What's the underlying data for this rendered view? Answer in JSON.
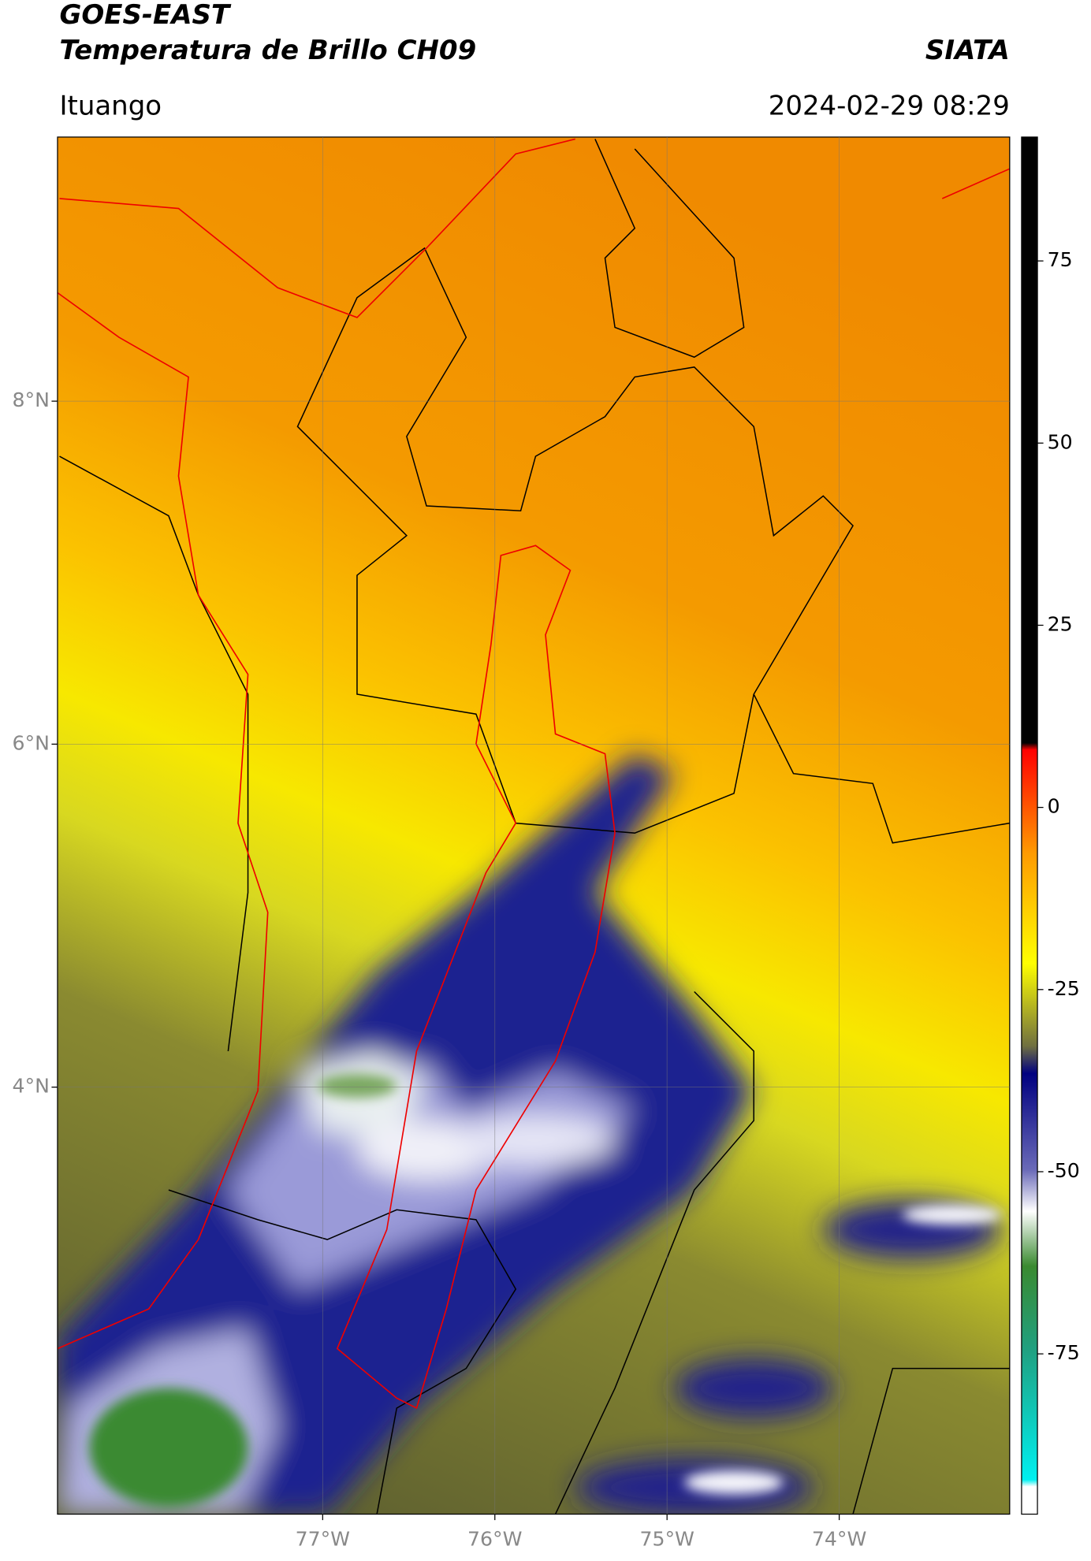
{
  "header": {
    "title_line1": "GOES-EAST",
    "title_line2": "Temperatura de Brillo CH09",
    "source": "SIATA",
    "location": "Ituango",
    "datetime": "2024-02-29 08:29"
  },
  "map": {
    "xlim": [
      -78.54,
      -73.01
    ],
    "ylim": [
      1.51,
      9.54
    ],
    "xticks": [
      {
        "value": -77,
        "label": "77°W"
      },
      {
        "value": -76,
        "label": "76°W"
      },
      {
        "value": -75,
        "label": "75°W"
      },
      {
        "value": -74,
        "label": "74°W"
      }
    ],
    "yticks": [
      {
        "value": 8,
        "label": "8°N"
      },
      {
        "value": 6,
        "label": "6°N"
      },
      {
        "value": 4,
        "label": "4°N"
      }
    ],
    "grid": true
  },
  "colorbar": {
    "clim": [
      -97,
      92
    ],
    "ticks": [
      75,
      50,
      25,
      0,
      -25,
      -50,
      -75
    ]
  }
}
